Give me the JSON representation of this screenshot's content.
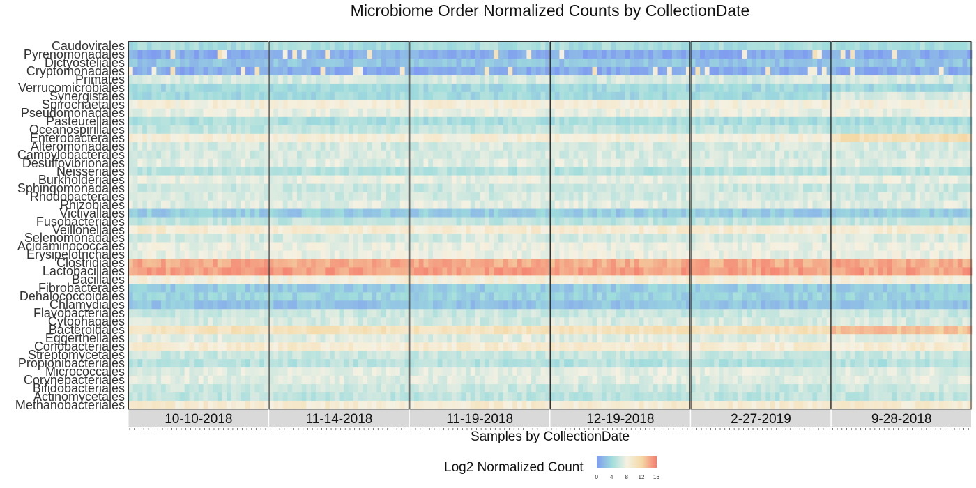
{
  "title": "Microbiome Order Normalized Counts by CollectionDate",
  "xlabel": "Samples by CollectionDate",
  "legend": {
    "title": "Log2 Normalized Count",
    "ticks": [
      "0",
      "4",
      "8",
      "12",
      "16"
    ],
    "colors": [
      "#7f9cf0",
      "#9fdcdc",
      "#f5f1e2",
      "#f4d9a6",
      "#f47d6e"
    ]
  },
  "chart_data": {
    "type": "heatmap",
    "title": "Microbiome Order Normalized Counts by CollectionDate",
    "xlabel": "Samples by CollectionDate",
    "ylabel": "",
    "value_range": [
      0,
      16
    ],
    "legend_placement": "bottom",
    "panels": [
      "10-10-2018",
      "11-14-2018",
      "11-19-2018",
      "12-19-2018",
      "2-27-2019",
      "9-28-2018"
    ],
    "rows": [
      "Caudovirales",
      "Pyrenomonadales",
      "Dictyosteliales",
      "Cryptomonadales",
      "Primates",
      "Verrucomicrobiales",
      "Synergistales",
      "Spirochaetales",
      "Pseudomonadales",
      "Pasteurellales",
      "Oceanospirillales",
      "Enterobacterales",
      "Alteromonadales",
      "Campylobacterales",
      "Desulfovibrionales",
      "Neisseriales",
      "Burkholderiales",
      "Sphingomonadales",
      "Rhodobacterales",
      "Rhizobiales",
      "Victivallales",
      "Fusobacteriales",
      "Veillonellales",
      "Selenomonadales",
      "Acidaminococcales",
      "Erysipelotrichales",
      "Clostridiales",
      "Lactobacillales",
      "Bacillales",
      "Fibrobacterales",
      "Dehalococcoidales",
      "Chlamydiales",
      "Flavobacteriales",
      "Cytophagales",
      "Bacteroidales",
      "Eggerthellales",
      "Coriobacteriales",
      "Streptomycetales",
      "Propionibacteriales",
      "Micrococcales",
      "Corynebacteriales",
      "Bifidobacteriales",
      "Actinomycetales",
      "Methanobacteriales"
    ],
    "row_mean_log2": [
      4.5,
      1.0,
      2.5,
      1.0,
      6.5,
      4.0,
      4.0,
      8.5,
      7.5,
      4.5,
      5.5,
      8.5,
      6.5,
      6.5,
      7.0,
      5.0,
      7.5,
      6.0,
      6.5,
      7.0,
      3.0,
      5.5,
      9.0,
      6.5,
      7.5,
      7.5,
      14.0,
      14.5,
      8.5,
      3.0,
      3.5,
      2.5,
      6.0,
      6.5,
      10.5,
      7.0,
      9.0,
      6.0,
      5.0,
      7.0,
      7.0,
      6.0,
      5.5,
      9.0
    ]
  }
}
